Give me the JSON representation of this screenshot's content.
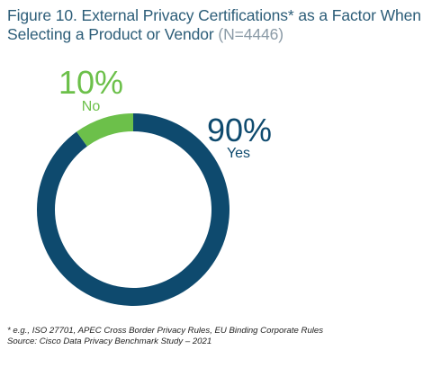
{
  "title": {
    "main": "Figure 10. External Privacy Certifications* as a Factor When Selecting a Product or Vendor",
    "sample": "(N=4446)"
  },
  "chart_data": {
    "type": "pie",
    "donut": true,
    "slices": [
      {
        "label": "Yes",
        "value": 90,
        "value_label": "90%",
        "color": "#0e4a6e"
      },
      {
        "label": "No",
        "value": 10,
        "value_label": "10%",
        "color": "#6cc04a"
      }
    ],
    "label_colors": {
      "Yes": "#0e4a6e",
      "No": "#6cc04a"
    },
    "start": "top",
    "direction": "clockwise"
  },
  "footnotes": {
    "definition": "* e.g., ISO 27701, APEC Cross Border Privacy Rules, EU Binding Corporate Rules",
    "source": "Source: Cisco Data Privacy Benchmark Study – 2021"
  }
}
